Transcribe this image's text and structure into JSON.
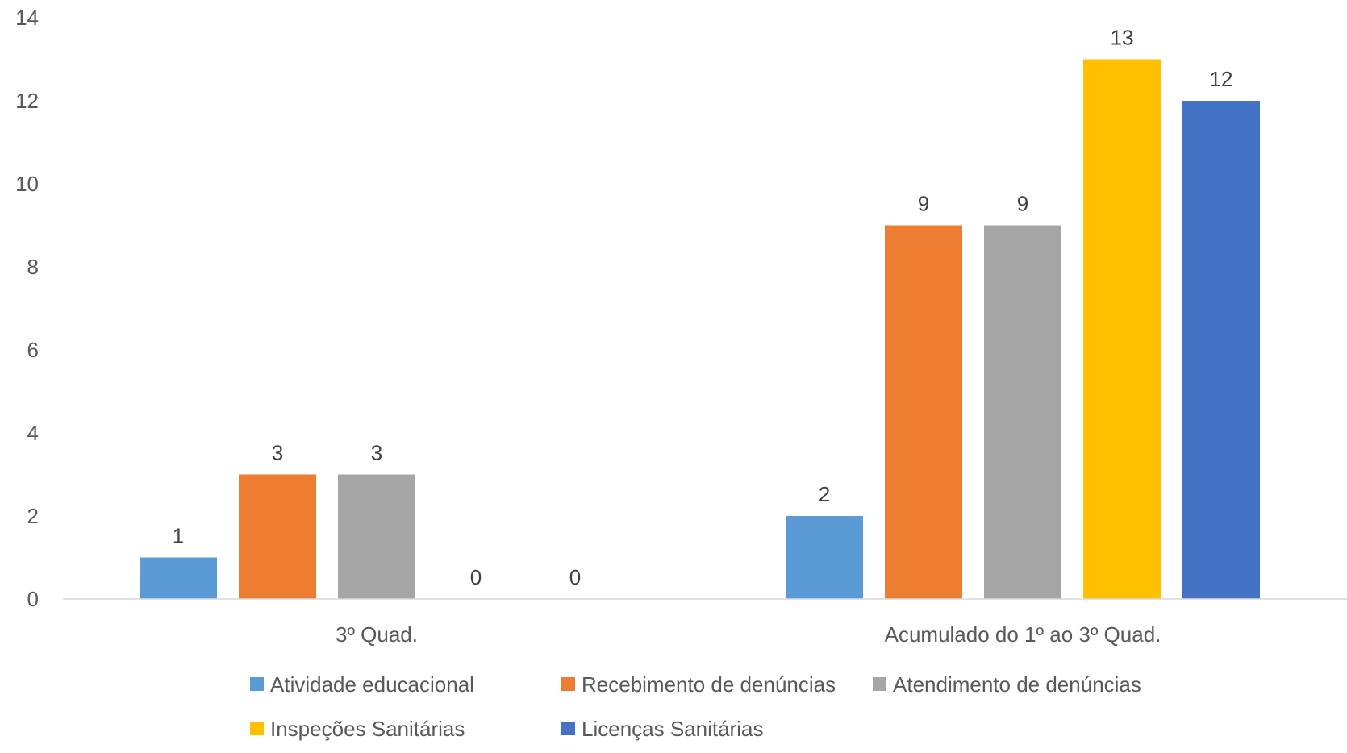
{
  "chart_data": {
    "type": "bar",
    "title": "",
    "xlabel": "",
    "ylabel": "",
    "ylim": [
      0,
      14
    ],
    "yticks": [
      0,
      2,
      4,
      6,
      8,
      10,
      12,
      14
    ],
    "grid": false,
    "legend_position": "bottom",
    "categories": [
      "3º Quad.",
      "Acumulado do 1º ao 3º Quad."
    ],
    "series": [
      {
        "name": "Atividade educacional",
        "values": [
          1,
          2
        ],
        "color": "#5B9BD5"
      },
      {
        "name": "Recebimento de denúncias",
        "values": [
          3,
          9
        ],
        "color": "#ED7D31"
      },
      {
        "name": "Atendimento de denúncias",
        "values": [
          3,
          9
        ],
        "color": "#A5A5A5"
      },
      {
        "name": "Inspeções Sanitárias",
        "values": [
          0,
          13
        ],
        "color": "#FFC000"
      },
      {
        "name": "Licenças Sanitárias",
        "values": [
          0,
          12
        ],
        "color": "#4472C4"
      }
    ],
    "data_labels": true
  }
}
